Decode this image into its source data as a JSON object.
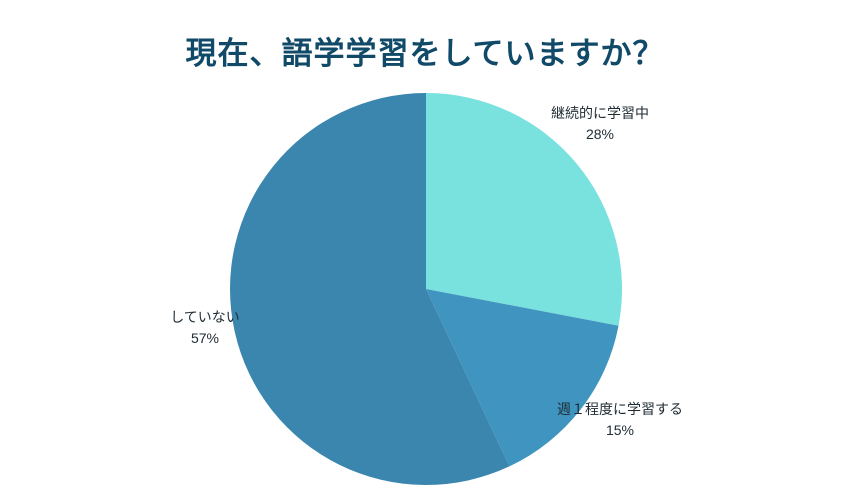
{
  "chart_data": {
    "type": "pie",
    "title": "現在、語学学習をしていますか？",
    "labels": [
      "継続的に学習中",
      "週１程度に学習する",
      "していない"
    ],
    "values": [
      28,
      15,
      57
    ],
    "value_labels": [
      "28%",
      "15%",
      "57%"
    ],
    "unit": "%",
    "colors": [
      "#79e1de",
      "#4094c0",
      "#3b86ae"
    ],
    "start_angle_deg": 0,
    "direction": "clockwise",
    "legend_position": "none",
    "label_placement": "outside",
    "background": "#ffffff",
    "title_color": "#114a68"
  }
}
